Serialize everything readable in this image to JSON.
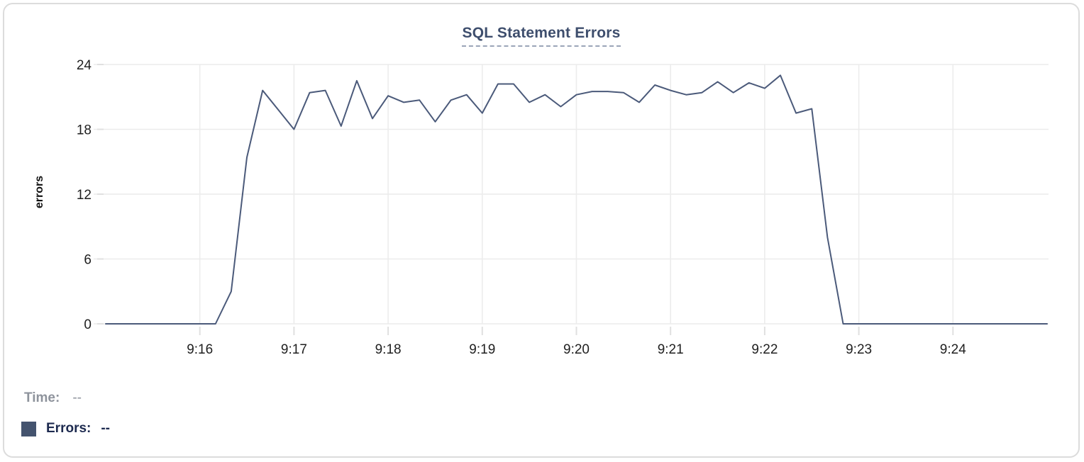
{
  "chart_data": {
    "type": "line",
    "title": "SQL Statement Errors",
    "ylabel": "errors",
    "xlabel": "",
    "ylim": [
      0,
      24
    ],
    "y_ticks": [
      0,
      6,
      12,
      18,
      24
    ],
    "x_tick_labels": [
      "9:16",
      "9:17",
      "9:18",
      "9:19",
      "9:20",
      "9:21",
      "9:22",
      "9:23",
      "9:24"
    ],
    "xlim": [
      "9:15:00",
      "9:25:00"
    ],
    "grid": true,
    "legend_position": "bottom-left",
    "x": [
      "9:15:00",
      "9:15:10",
      "9:15:20",
      "9:15:30",
      "9:15:40",
      "9:15:50",
      "9:16:00",
      "9:16:10",
      "9:16:20",
      "9:16:30",
      "9:16:40",
      "9:16:50",
      "9:17:00",
      "9:17:10",
      "9:17:20",
      "9:17:30",
      "9:17:40",
      "9:17:50",
      "9:18:00",
      "9:18:10",
      "9:18:20",
      "9:18:30",
      "9:18:40",
      "9:18:50",
      "9:19:00",
      "9:19:10",
      "9:19:20",
      "9:19:30",
      "9:19:40",
      "9:19:50",
      "9:20:00",
      "9:20:10",
      "9:20:20",
      "9:20:30",
      "9:20:40",
      "9:20:50",
      "9:21:00",
      "9:21:10",
      "9:21:20",
      "9:21:30",
      "9:21:40",
      "9:21:50",
      "9:22:00",
      "9:22:10",
      "9:22:20",
      "9:22:30",
      "9:22:40",
      "9:22:50",
      "9:23:00",
      "9:23:10",
      "9:23:20",
      "9:23:30",
      "9:23:40",
      "9:23:50",
      "9:24:00",
      "9:24:10",
      "9:24:20",
      "9:24:30",
      "9:24:40",
      "9:24:50",
      "9:25:00"
    ],
    "series": [
      {
        "name": "Errors",
        "color": "#4b5a7a",
        "values": [
          0,
          0,
          0,
          0,
          0,
          0,
          0,
          0,
          3,
          15.4,
          21.6,
          19.8,
          18,
          21.4,
          21.6,
          18.3,
          22.5,
          19,
          21.1,
          20.5,
          20.7,
          18.7,
          20.7,
          21.2,
          19.5,
          22.2,
          22.2,
          20.5,
          21.2,
          20.1,
          21.2,
          21.5,
          21.5,
          21.4,
          20.5,
          22.1,
          21.6,
          21.2,
          21.4,
          22.4,
          21.4,
          22.3,
          21.8,
          23,
          19.5,
          19.9,
          8,
          0,
          0,
          0,
          0,
          0,
          0,
          0,
          0,
          0,
          0,
          0,
          0,
          0,
          0
        ]
      }
    ]
  },
  "legend": {
    "time_label": "Time:",
    "time_value": "--",
    "errors_label": "Errors:",
    "errors_value": "--",
    "swatch_color": "#44536e"
  },
  "colors": {
    "grid": "#ececec",
    "tick": "#e0e0e0",
    "title": "#3e4e6d",
    "title_underline": "#9aa4b8"
  }
}
